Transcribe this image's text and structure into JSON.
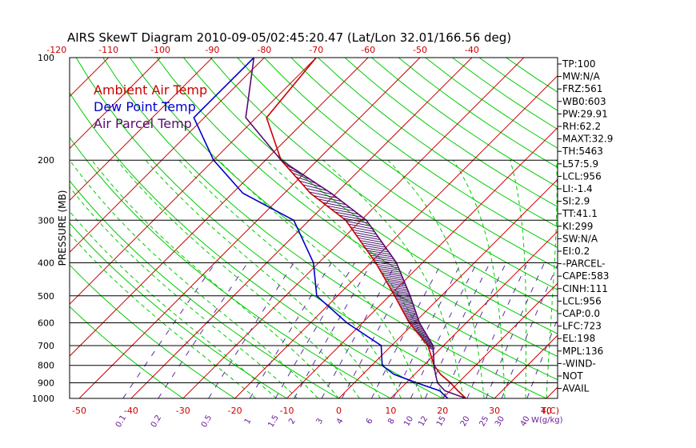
{
  "chart_data": {
    "type": "skewt",
    "title": "AIRS SkewT Diagram 2010-09-05/02:45:20.47 (Lat/Lon 32.01/166.56 deg)",
    "ylabel": "PRESSURE (MB)",
    "temp_axis_label": "T(C)",
    "mixing_axis_label": "W(g/kg)",
    "pressure_ticks": [
      100,
      200,
      300,
      400,
      500,
      600,
      700,
      800,
      900,
      1000
    ],
    "top_temp_ticks": [
      -120,
      -110,
      -100,
      -90,
      -80,
      -70,
      -60,
      -50,
      -40
    ],
    "bottom_temp_ticks": [
      -50,
      -40,
      -30,
      -20,
      -10,
      0,
      10,
      20,
      30,
      40
    ],
    "mixing_ratio_ticks": [
      "0.1",
      "0.2",
      "0.5",
      "1",
      "1.5",
      "2",
      "3",
      "4",
      "6",
      "8",
      "10",
      "12",
      "15",
      "20",
      "25",
      "30",
      "40"
    ],
    "legend": [
      {
        "name": "Ambient Air Temp",
        "color": "#cc0000"
      },
      {
        "name": "Dew Point Temp",
        "color": "#0000cc"
      },
      {
        "name": "Air Parcel Temp",
        "color": "#5a0a6e"
      }
    ],
    "series": [
      {
        "name": "Ambient Air Temp",
        "color": "#cc0000",
        "points": [
          [
            1000,
            24.5
          ],
          [
            950,
            21.5
          ],
          [
            900,
            18.5
          ],
          [
            850,
            15.0
          ],
          [
            800,
            12.0
          ],
          [
            700,
            7.0
          ],
          [
            600,
            -1.0
          ],
          [
            500,
            -9.0
          ],
          [
            400,
            -19.0
          ],
          [
            300,
            -33.0
          ],
          [
            250,
            -45.0
          ],
          [
            200,
            -57.0
          ],
          [
            150,
            -68.0
          ],
          [
            100,
            -70.0
          ]
        ]
      },
      {
        "name": "Dew Point Temp",
        "color": "#0000cc",
        "points": [
          [
            1000,
            21.0
          ],
          [
            950,
            18.0
          ],
          [
            900,
            12.0
          ],
          [
            850,
            6.0
          ],
          [
            800,
            2.0
          ],
          [
            700,
            -2.0
          ],
          [
            600,
            -13.0
          ],
          [
            500,
            -24.0
          ],
          [
            400,
            -31.0
          ],
          [
            300,
            -43.0
          ],
          [
            250,
            -58.0
          ],
          [
            200,
            -70.0
          ],
          [
            150,
            -82.0
          ],
          [
            100,
            -82.0
          ]
        ]
      },
      {
        "name": "Air Parcel Temp",
        "color": "#5a0a6e",
        "points": [
          [
            1000,
            24.5
          ],
          [
            950,
            19.0
          ],
          [
            900,
            16.0
          ],
          [
            850,
            14.0
          ],
          [
            800,
            12.0
          ],
          [
            700,
            8.0
          ],
          [
            600,
            1.0
          ],
          [
            500,
            -6.0
          ],
          [
            400,
            -15.0
          ],
          [
            300,
            -29.0
          ],
          [
            250,
            -41.0
          ],
          [
            200,
            -57.0
          ],
          [
            150,
            -72.0
          ],
          [
            100,
            -82.0
          ]
        ]
      }
    ],
    "indices": [
      "TP:100",
      "MW:N/A",
      "FRZ:561",
      "WB0:603",
      "PW:29.91",
      "RH:62.2",
      "MAXT:32.9",
      "TH:5463",
      "L57:5.9",
      "LCL:956",
      "LI:-1.4",
      "SI:2.9",
      "TT:41.1",
      "KI:299",
      "SW:N/A",
      "EI:0.2",
      "-PARCEL-",
      "CAPE:583",
      "CINH:111",
      "LCL:956",
      "CAP:0.0",
      "LFC:723",
      "EL:198",
      "MPL:136",
      "-WIND-",
      "NOT",
      "AVAIL"
    ]
  },
  "colors": {
    "isotherm": "#cc0000",
    "dry_adiabat": "#00cc00",
    "moist_adiabat": "#00cc00",
    "mixing_ratio": "#5a2ca0",
    "isobar": "#000000",
    "hatch": "#4a1a6e"
  }
}
